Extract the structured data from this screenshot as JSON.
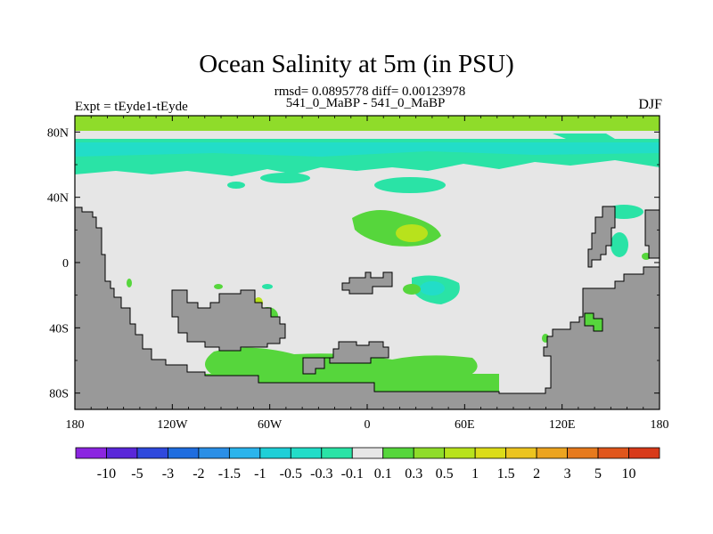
{
  "chart_data": {
    "type": "heatmap",
    "title": "Ocean Salinity at 5m (in PSU)",
    "stats_text": "rmsd= 0.0895778  diff= 0.00123978",
    "subtitle": "541_0_MaBP - 541_0_MaBP",
    "left_label": "Expt = tEyde1-tEyde",
    "right_label": "DJF",
    "x_ticks": [
      "180",
      "120W",
      "60W",
      "0",
      "60E",
      "120E",
      "180"
    ],
    "x_tick_values": [
      -180,
      -120,
      -60,
      0,
      60,
      120,
      180
    ],
    "y_ticks": [
      "80N",
      "40N",
      "0",
      "40S",
      "80S"
    ],
    "y_tick_values": [
      80,
      40,
      0,
      -40,
      -80
    ],
    "xlim": [
      -180,
      180
    ],
    "ylim": [
      -90,
      90
    ],
    "land_color": "#999999",
    "colorbar": {
      "levels": [
        "-10",
        "-5",
        "-3",
        "-2",
        "-1.5",
        "-1",
        "-0.5",
        "-0.3",
        "-0.1",
        "0.1",
        "0.3",
        "0.5",
        "1",
        "1.5",
        "2",
        "3",
        "5",
        "10"
      ],
      "colors": [
        "#8b25e0",
        "#5a27d9",
        "#2f49dd",
        "#1f6ddf",
        "#2b8fe6",
        "#2bb4ec",
        "#1fcfd7",
        "#22ddc8",
        "#2ae3a6",
        "#e6e6e6",
        "#56d63c",
        "#8fdc2a",
        "#b8e21c",
        "#dcdc18",
        "#ecc420",
        "#eca420",
        "#e67a1d",
        "#e0561c",
        "#d83a1a"
      ]
    }
  }
}
